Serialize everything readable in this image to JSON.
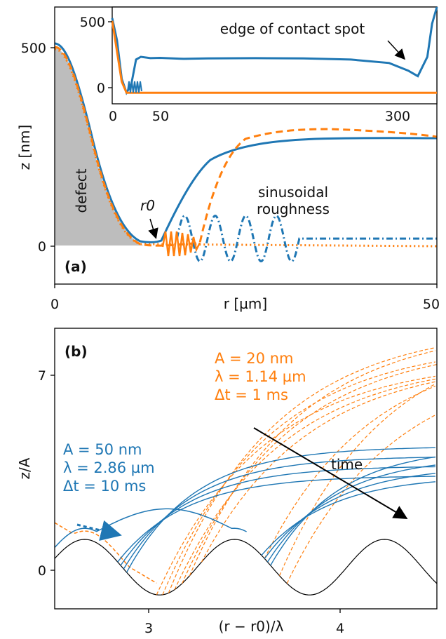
{
  "colors": {
    "blue": "#1f77b4",
    "orange": "#ff7f0e",
    "defect_fill": "#bdbdbd",
    "sinusoid": "#000000"
  },
  "chart_data": [
    {
      "panel": "(a)",
      "type": "line",
      "xlabel": "r [µm]",
      "ylabel": "z [nm]",
      "xlim": [
        0,
        50
      ],
      "ylim": [
        -120,
        610
      ],
      "xticks": [
        "0",
        "50"
      ],
      "yticks": [
        "0",
        "500"
      ],
      "annotations": {
        "defect": "defect",
        "r0": "r0",
        "roughness_line1": "sinusoidal",
        "roughness_line2": "roughness"
      },
      "series": [
        {
          "color": "blue",
          "style": "solid",
          "x": [
            0,
            2,
            4,
            6,
            8,
            10,
            12,
            14,
            16,
            18,
            20,
            22,
            24,
            26,
            28,
            30,
            32,
            34,
            36,
            38,
            40,
            42,
            44,
            46,
            48,
            50
          ],
          "y": [
            505,
            490,
            420,
            300,
            150,
            40,
            15,
            15,
            20,
            110,
            190,
            225,
            248,
            260,
            268,
            273,
            276,
            278,
            279,
            279,
            279,
            279,
            279,
            280,
            280,
            280
          ]
        },
        {
          "color": "orange",
          "style": "dashed",
          "x": [
            0,
            2,
            4,
            6,
            8,
            10,
            12,
            14,
            16,
            18,
            20,
            22,
            24,
            26,
            28,
            30,
            32,
            34,
            36,
            38,
            40,
            42,
            44,
            46,
            48,
            50
          ],
          "y": [
            500,
            485,
            415,
            295,
            140,
            30,
            8,
            6,
            10,
            10,
            120,
            230,
            270,
            290,
            298,
            302,
            304,
            305,
            305,
            304,
            303,
            302,
            300,
            298,
            295,
            291
          ]
        },
        {
          "color": "orange",
          "style": "dotted",
          "x": [
            0,
            2,
            4,
            6,
            8,
            10,
            12,
            14,
            16,
            18,
            20,
            22,
            24,
            26,
            28,
            30,
            32,
            34,
            36,
            38,
            40,
            42,
            44,
            46,
            48,
            50
          ],
          "y": [
            500,
            485,
            415,
            295,
            140,
            30,
            5,
            0,
            0,
            0,
            0,
            0,
            0,
            0,
            0,
            0,
            0,
            0,
            0,
            0,
            0,
            0,
            0,
            0,
            0,
            0
          ]
        },
        {
          "color": "blue",
          "style": "dashdot",
          "x": [
            16,
            17,
            18,
            19,
            20,
            21,
            22,
            23,
            24,
            25,
            26,
            27,
            28,
            29,
            30,
            31,
            32,
            50
          ],
          "y": [
            0,
            60,
            0,
            -60,
            0,
            60,
            0,
            -60,
            0,
            60,
            0,
            -60,
            0,
            60,
            0,
            -60,
            0,
            0
          ]
        }
      ],
      "inset": {
        "xlim": [
          0,
          340
        ],
        "ylim": [
          -80,
          620
        ],
        "xticks": [
          "0",
          "50",
          "300"
        ],
        "yticks": [
          "0",
          "500"
        ],
        "annotation": "edge of contact spot",
        "series": [
          {
            "color": "blue",
            "x": [
              0,
              5,
              10,
              15,
              20,
              25,
              30,
              40,
              50,
              75,
              100,
              150,
              200,
              250,
              290,
              310,
              320,
              330,
              335,
              340
            ],
            "y": [
              540,
              380,
              100,
              0,
              60,
              240,
              260,
              250,
              252,
              245,
              248,
              250,
              248,
              240,
              215,
              160,
              120,
              260,
              500,
              620
            ]
          },
          {
            "color": "orange",
            "x": [
              0,
              5,
              10,
              15,
              20,
              25,
              30,
              40,
              50,
              75,
              100,
              150,
              200,
              250,
              300,
              340
            ],
            "y": [
              520,
              300,
              80,
              0,
              0,
              0,
              0,
              0,
              0,
              0,
              0,
              0,
              0,
              0,
              0,
              0
            ]
          }
        ]
      }
    },
    {
      "panel": "(b)",
      "type": "line",
      "xlabel": "(r − r0)/λ",
      "ylabel": "z/A",
      "xlim": [
        2.3,
        4.85
      ],
      "ylim": [
        -1.5,
        8.6
      ],
      "xticks": [
        "3",
        "4"
      ],
      "yticks": [
        "0",
        "7"
      ],
      "legend_blue": [
        "A = 50 nm",
        "λ = 2.86 µm",
        "Δt = 10 ms"
      ],
      "legend_orange": [
        "A = 20 nm",
        "λ = 1.14 µm",
        "Δt = 1 ms"
      ],
      "time_label": "time",
      "sinusoid": {
        "x": [
          2.3,
          2.5,
          2.75,
          3.0,
          3.25,
          3.5,
          3.75,
          4.0,
          4.25,
          4.5,
          4.75,
          4.85
        ],
        "y": [
          0.8,
          0.3,
          -0.8,
          -1.0,
          -0.3,
          1.0,
          -0.3,
          -1.0,
          -0.3,
          1.0,
          0.8,
          0.5
        ]
      }
    }
  ]
}
